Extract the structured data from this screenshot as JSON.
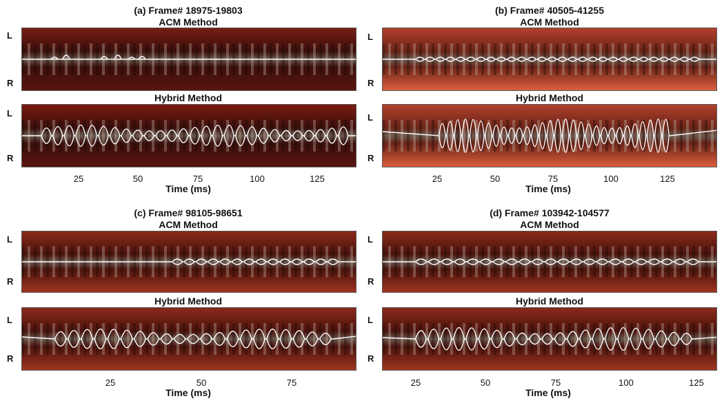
{
  "panels": [
    {
      "title": "(a) Frame# 18975-19803",
      "rows": [
        {
          "subtitle": "ACM Method",
          "variant": "acm-a"
        },
        {
          "subtitle": "Hybrid Method",
          "variant": "hybrid-a"
        }
      ],
      "side_top": "L",
      "side_bottom": "R",
      "x_ticks": [
        "25",
        "50",
        "75",
        "100",
        "125"
      ],
      "xlabel": "Time (ms)",
      "tint": "dark"
    },
    {
      "title": "(b) Frame# 40505-41255",
      "rows": [
        {
          "subtitle": "ACM Method",
          "variant": "acm-b"
        },
        {
          "subtitle": "Hybrid Method",
          "variant": "hybrid-b"
        }
      ],
      "side_top": "L",
      "side_bottom": "R",
      "x_ticks": [
        "25",
        "50",
        "75",
        "100",
        "125"
      ],
      "xlabel": "Time (ms)",
      "tint": "bright"
    },
    {
      "title": "(c) Frame# 98105-98651",
      "rows": [
        {
          "subtitle": "ACM Method",
          "variant": "acm-c"
        },
        {
          "subtitle": "Hybrid Method",
          "variant": "hybrid-c"
        }
      ],
      "side_top": "L",
      "side_bottom": "R",
      "x_ticks": [
        "25",
        "50",
        "75"
      ],
      "xlabel": "Time (ms)",
      "tint": "medium"
    },
    {
      "title": "(d) Frame# 103942-104577",
      "rows": [
        {
          "subtitle": "ACM Method",
          "variant": "acm-d"
        },
        {
          "subtitle": "Hybrid Method",
          "variant": "hybrid-d"
        }
      ],
      "side_top": "L",
      "side_bottom": "R",
      "x_ticks": [
        "25",
        "50",
        "75",
        "100",
        "125"
      ],
      "xlabel": "Time (ms)",
      "tint": "medium"
    }
  ]
}
